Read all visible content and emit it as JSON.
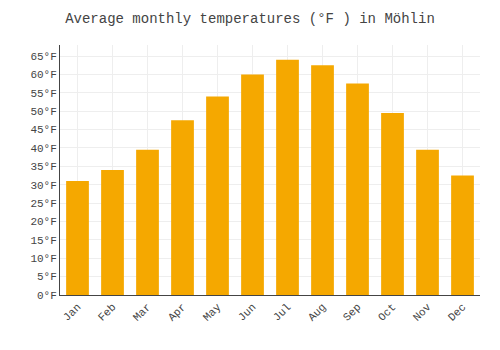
{
  "chart_data": {
    "type": "bar",
    "title": "Average monthly temperatures (°F ) in Möhlin",
    "categories": [
      "Jan",
      "Feb",
      "Mar",
      "Apr",
      "May",
      "Jun",
      "Jul",
      "Aug",
      "Sep",
      "Oct",
      "Nov",
      "Dec"
    ],
    "values": [
      31,
      34,
      39.5,
      47.5,
      54,
      60,
      64,
      62.5,
      57.5,
      49.5,
      39.5,
      32.5
    ],
    "color": "#F5A800",
    "ylim": [
      0,
      68
    ],
    "yticks": [
      {
        "value": 0,
        "label": "0°F"
      },
      {
        "value": 5,
        "label": "5°F"
      },
      {
        "value": 10,
        "label": "10°F"
      },
      {
        "value": 15,
        "label": "15°F"
      },
      {
        "value": 20,
        "label": "20°F"
      },
      {
        "value": 25,
        "label": "25°F"
      },
      {
        "value": 30,
        "label": "30°F"
      },
      {
        "value": 35,
        "label": "35°F"
      },
      {
        "value": 40,
        "label": "40°F"
      },
      {
        "value": 45,
        "label": "45°F"
      },
      {
        "value": 50,
        "label": "50°F"
      },
      {
        "value": 55,
        "label": "55°F"
      },
      {
        "value": 60,
        "label": "60°F"
      },
      {
        "value": 65,
        "label": "65°F"
      }
    ],
    "grid": true
  }
}
